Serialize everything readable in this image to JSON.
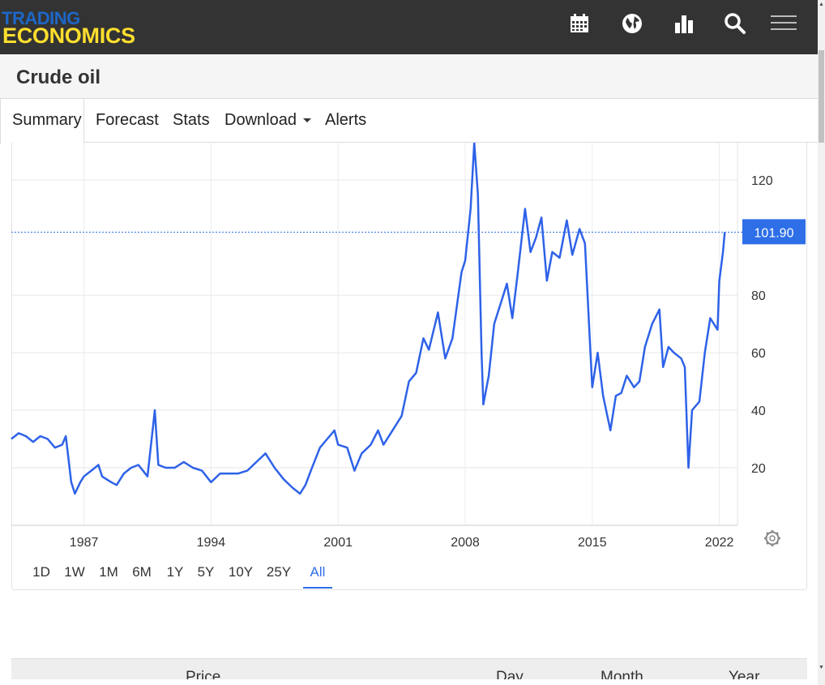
{
  "header": {
    "logo_top": "TRADING",
    "logo_bottom": "ECONOMICS",
    "icons": [
      "calendar-icon",
      "globe-icon",
      "bar-chart-icon",
      "search-icon",
      "menu-icon"
    ]
  },
  "title": "Crude oil",
  "tabs": [
    {
      "label": "Summary",
      "active": true
    },
    {
      "label": "Forecast"
    },
    {
      "label": "Stats"
    },
    {
      "label": "Download",
      "dropdown": true
    },
    {
      "label": "Alerts"
    }
  ],
  "ranges": [
    "1D",
    "1W",
    "1M",
    "6M",
    "1Y",
    "5Y",
    "10Y",
    "25Y",
    "All"
  ],
  "active_range": "All",
  "table_headers": [
    "Price",
    "Day",
    "Month",
    "Year"
  ],
  "colors": {
    "line": "#2e62e8",
    "badge": "#2e6fe8",
    "header_bg": "#333333",
    "logo_blue": "#1d67c8",
    "logo_yellow": "#ffde2e"
  },
  "chart_data": {
    "type": "line",
    "series": [
      {
        "values": [
          [
            1983.0,
            30
          ],
          [
            1983.4,
            32
          ],
          [
            1983.8,
            31
          ],
          [
            1984.2,
            29
          ],
          [
            1984.6,
            31
          ],
          [
            1985.0,
            30
          ],
          [
            1985.4,
            27
          ],
          [
            1985.8,
            28
          ],
          [
            1986.0,
            31
          ],
          [
            1986.3,
            15
          ],
          [
            1986.5,
            11
          ],
          [
            1986.8,
            15
          ],
          [
            1987.0,
            17
          ],
          [
            1987.4,
            19
          ],
          [
            1987.8,
            21
          ],
          [
            1988.0,
            17
          ],
          [
            1988.5,
            15
          ],
          [
            1988.8,
            14
          ],
          [
            1989.2,
            18
          ],
          [
            1989.6,
            20
          ],
          [
            1990.0,
            21
          ],
          [
            1990.5,
            17
          ],
          [
            1990.8,
            34
          ],
          [
            1990.9,
            40
          ],
          [
            1991.1,
            21
          ],
          [
            1991.5,
            20
          ],
          [
            1992.0,
            20
          ],
          [
            1992.5,
            22
          ],
          [
            1993.0,
            20
          ],
          [
            1993.5,
            19
          ],
          [
            1994.0,
            15
          ],
          [
            1994.5,
            18
          ],
          [
            1995.0,
            18
          ],
          [
            1995.5,
            18
          ],
          [
            1996.0,
            19
          ],
          [
            1996.5,
            22
          ],
          [
            1997.0,
            25
          ],
          [
            1997.5,
            20
          ],
          [
            1998.0,
            16
          ],
          [
            1998.5,
            13
          ],
          [
            1998.9,
            11
          ],
          [
            1999.2,
            14
          ],
          [
            1999.5,
            19
          ],
          [
            2000.0,
            27
          ],
          [
            2000.4,
            30
          ],
          [
            2000.8,
            33
          ],
          [
            2001.0,
            28
          ],
          [
            2001.5,
            27
          ],
          [
            2001.9,
            19
          ],
          [
            2002.3,
            25
          ],
          [
            2002.8,
            28
          ],
          [
            2003.2,
            33
          ],
          [
            2003.5,
            28
          ],
          [
            2004.0,
            33
          ],
          [
            2004.5,
            38
          ],
          [
            2004.9,
            50
          ],
          [
            2005.3,
            53
          ],
          [
            2005.7,
            65
          ],
          [
            2006.0,
            61
          ],
          [
            2006.5,
            74
          ],
          [
            2006.9,
            58
          ],
          [
            2007.3,
            65
          ],
          [
            2007.8,
            88
          ],
          [
            2008.0,
            92
          ],
          [
            2008.3,
            110
          ],
          [
            2008.5,
            133
          ],
          [
            2008.7,
            115
          ],
          [
            2008.9,
            60
          ],
          [
            2009.0,
            42
          ],
          [
            2009.3,
            52
          ],
          [
            2009.6,
            70
          ],
          [
            2010.0,
            78
          ],
          [
            2010.3,
            84
          ],
          [
            2010.6,
            72
          ],
          [
            2010.9,
            88
          ],
          [
            2011.3,
            110
          ],
          [
            2011.6,
            95
          ],
          [
            2011.9,
            100
          ],
          [
            2012.2,
            107
          ],
          [
            2012.5,
            85
          ],
          [
            2012.8,
            95
          ],
          [
            2013.2,
            93
          ],
          [
            2013.6,
            106
          ],
          [
            2013.9,
            94
          ],
          [
            2014.3,
            103
          ],
          [
            2014.6,
            98
          ],
          [
            2014.9,
            60
          ],
          [
            2015.0,
            48
          ],
          [
            2015.3,
            60
          ],
          [
            2015.6,
            45
          ],
          [
            2016.0,
            33
          ],
          [
            2016.3,
            45
          ],
          [
            2016.6,
            46
          ],
          [
            2016.9,
            52
          ],
          [
            2017.3,
            48
          ],
          [
            2017.6,
            50
          ],
          [
            2017.9,
            62
          ],
          [
            2018.3,
            70
          ],
          [
            2018.7,
            75
          ],
          [
            2018.9,
            55
          ],
          [
            2019.2,
            62
          ],
          [
            2019.5,
            60
          ],
          [
            2019.9,
            58
          ],
          [
            2020.1,
            55
          ],
          [
            2020.3,
            20
          ],
          [
            2020.5,
            40
          ],
          [
            2020.9,
            43
          ],
          [
            2021.2,
            60
          ],
          [
            2021.5,
            72
          ],
          [
            2021.9,
            68
          ],
          [
            2022.0,
            85
          ],
          [
            2022.2,
            95
          ],
          [
            2022.3,
            101.9
          ]
        ]
      }
    ],
    "x_ticks": [
      "1987",
      "1994",
      "2001",
      "2008",
      "2015",
      "2022"
    ],
    "x_tick_values": [
      1987,
      1994,
      2001,
      2008,
      2015,
      2022
    ],
    "y_ticks": [
      20,
      40,
      60,
      80,
      120
    ],
    "xlim": [
      1983,
      2023
    ],
    "ylim": [
      0,
      133
    ],
    "last_value": 101.9,
    "last_label": "101.90",
    "grid": true
  }
}
